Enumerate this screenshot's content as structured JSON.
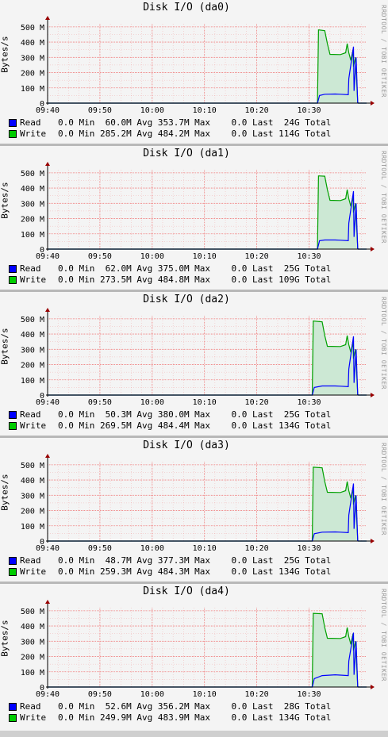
{
  "colors": {
    "read": "#0000ff",
    "write": "#00cc00",
    "write_fill": "#cce8d4",
    "write_line": "#00a000",
    "grid": "#f08080",
    "axis": "#000000",
    "arrow": "#990000"
  },
  "watermark": "RRDTOOL / TOBI OETIKER",
  "chart_data": [
    {
      "type": "area",
      "title": "Disk I/O (da0)",
      "ylabel": "Bytes/s",
      "x_ticks": [
        "09:40",
        "09:50",
        "10:00",
        "10:10",
        "10:20",
        "10:30"
      ],
      "y_ticks": [
        "0",
        "100 M",
        "200 M",
        "300 M",
        "400 M",
        "500 M"
      ],
      "ylim": [
        0,
        520
      ],
      "xlim_minutes": [
        0,
        61
      ],
      "grid": true,
      "series": [
        {
          "name": "Read",
          "color": "#0000ff",
          "x": [
            0,
            51.6,
            52.0,
            53.0,
            55.0,
            56.0,
            57.5,
            57.6,
            58.5,
            58.6,
            59.0,
            59.3,
            59.4,
            61.0
          ],
          "y": [
            0,
            0,
            50,
            58,
            60,
            58,
            55,
            160,
            370,
            80,
            300,
            5,
            0,
            0
          ],
          "stats": {
            "current": "0.0",
            "min": "60.0M",
            "avg": "353.7M",
            "max": "0.0",
            "last": "24G"
          }
        },
        {
          "name": "Write",
          "color": "#00cc00",
          "x": [
            0,
            51.6,
            51.8,
            53.0,
            53.5,
            54.0,
            56.0,
            57.0,
            57.3,
            57.6,
            58.0,
            58.4,
            58.5,
            58.9,
            59.3,
            59.4,
            61.0
          ],
          "y": [
            0,
            0,
            480,
            475,
            390,
            320,
            318,
            330,
            390,
            330,
            280,
            350,
            240,
            300,
            5,
            0,
            0
          ],
          "stats": {
            "current": "0.0",
            "min": "285.2M",
            "avg": "484.2M",
            "max": "0.0",
            "last": "114G"
          }
        }
      ]
    },
    {
      "type": "area",
      "title": "Disk I/O (da1)",
      "ylabel": "Bytes/s",
      "x_ticks": [
        "09:40",
        "09:50",
        "10:00",
        "10:10",
        "10:20",
        "10:30"
      ],
      "y_ticks": [
        "0",
        "100 M",
        "200 M",
        "300 M",
        "400 M",
        "500 M"
      ],
      "ylim": [
        0,
        520
      ],
      "xlim_minutes": [
        0,
        61
      ],
      "grid": true,
      "series": [
        {
          "name": "Read",
          "color": "#0000ff",
          "x": [
            0,
            51.6,
            52.0,
            53.0,
            55.0,
            56.0,
            57.5,
            57.6,
            58.5,
            58.6,
            59.0,
            59.3,
            59.4,
            61.0
          ],
          "y": [
            0,
            0,
            55,
            60,
            60,
            58,
            55,
            170,
            380,
            80,
            300,
            5,
            0,
            0
          ],
          "stats": {
            "current": "0.0",
            "min": "62.0M",
            "avg": "375.0M",
            "max": "0.0",
            "last": "25G"
          }
        },
        {
          "name": "Write",
          "color": "#00cc00",
          "x": [
            0,
            51.6,
            51.8,
            53.0,
            53.5,
            54.0,
            56.0,
            57.0,
            57.3,
            57.6,
            58.0,
            58.4,
            58.5,
            58.9,
            59.3,
            59.4,
            61.0
          ],
          "y": [
            0,
            0,
            480,
            478,
            390,
            320,
            318,
            330,
            390,
            330,
            280,
            350,
            240,
            300,
            5,
            0,
            0
          ],
          "stats": {
            "current": "0.0",
            "min": "273.5M",
            "avg": "484.8M",
            "max": "0.0",
            "last": "109G"
          }
        }
      ]
    },
    {
      "type": "area",
      "title": "Disk I/O (da2)",
      "ylabel": "Bytes/s",
      "x_ticks": [
        "09:40",
        "09:50",
        "10:00",
        "10:10",
        "10:20",
        "10:30"
      ],
      "y_ticks": [
        "0",
        "100 M",
        "200 M",
        "300 M",
        "400 M",
        "500 M"
      ],
      "ylim": [
        0,
        520
      ],
      "xlim_minutes": [
        0,
        61
      ],
      "grid": true,
      "series": [
        {
          "name": "Read",
          "color": "#0000ff",
          "x": [
            0,
            50.6,
            51.0,
            52.5,
            55.0,
            56.0,
            57.5,
            57.6,
            58.5,
            58.6,
            59.0,
            59.3,
            59.4,
            61.0
          ],
          "y": [
            0,
            0,
            50,
            60,
            60,
            58,
            55,
            170,
            385,
            80,
            300,
            5,
            0,
            0
          ],
          "stats": {
            "current": "0.0",
            "min": "50.3M",
            "avg": "380.0M",
            "max": "0.0",
            "last": "25G"
          }
        },
        {
          "name": "Write",
          "color": "#00cc00",
          "x": [
            0,
            50.6,
            50.8,
            52.5,
            53.0,
            53.5,
            56.0,
            57.0,
            57.3,
            57.6,
            58.0,
            58.4,
            58.5,
            58.9,
            59.3,
            59.4,
            61.0
          ],
          "y": [
            0,
            0,
            485,
            480,
            390,
            320,
            318,
            330,
            390,
            330,
            280,
            350,
            240,
            300,
            5,
            0,
            0
          ],
          "stats": {
            "current": "0.0",
            "min": "269.5M",
            "avg": "484.4M",
            "max": "0.0",
            "last": "134G"
          }
        }
      ]
    },
    {
      "type": "area",
      "title": "Disk I/O (da3)",
      "ylabel": "Bytes/s",
      "x_ticks": [
        "09:40",
        "09:50",
        "10:00",
        "10:10",
        "10:20",
        "10:30"
      ],
      "y_ticks": [
        "0",
        "100 M",
        "200 M",
        "300 M",
        "400 M",
        "500 M"
      ],
      "ylim": [
        0,
        520
      ],
      "xlim_minutes": [
        0,
        61
      ],
      "grid": true,
      "series": [
        {
          "name": "Read",
          "color": "#0000ff",
          "x": [
            0,
            50.6,
            51.0,
            52.5,
            55.0,
            56.0,
            57.5,
            57.6,
            58.5,
            58.6,
            59.0,
            59.3,
            59.4,
            61.0
          ],
          "y": [
            0,
            0,
            48,
            58,
            60,
            58,
            55,
            170,
            377,
            80,
            300,
            5,
            0,
            0
          ],
          "stats": {
            "current": "0.0",
            "min": "48.7M",
            "avg": "377.3M",
            "max": "0.0",
            "last": "25G"
          }
        },
        {
          "name": "Write",
          "color": "#00cc00",
          "x": [
            0,
            50.6,
            50.8,
            52.5,
            53.0,
            53.5,
            56.0,
            57.0,
            57.3,
            57.6,
            58.0,
            58.4,
            58.5,
            58.9,
            59.3,
            59.4,
            61.0
          ],
          "y": [
            0,
            0,
            484,
            480,
            390,
            320,
            318,
            330,
            390,
            330,
            280,
            350,
            240,
            300,
            5,
            0,
            0
          ],
          "stats": {
            "current": "0.0",
            "min": "259.3M",
            "avg": "484.3M",
            "max": "0.0",
            "last": "134G"
          }
        }
      ]
    },
    {
      "type": "area",
      "title": "Disk I/O (da4)",
      "ylabel": "Bytes/s",
      "x_ticks": [
        "09:40",
        "09:50",
        "10:00",
        "10:10",
        "10:20",
        "10:30"
      ],
      "y_ticks": [
        "0",
        "100 M",
        "200 M",
        "300 M",
        "400 M",
        "500 M"
      ],
      "ylim": [
        0,
        520
      ],
      "xlim_minutes": [
        0,
        61
      ],
      "grid": true,
      "series": [
        {
          "name": "Read",
          "color": "#0000ff",
          "x": [
            0,
            50.6,
            51.0,
            52.5,
            55.0,
            56.0,
            57.5,
            57.6,
            58.5,
            58.6,
            59.0,
            59.3,
            59.4,
            61.0
          ],
          "y": [
            0,
            0,
            55,
            75,
            80,
            78,
            75,
            170,
            356,
            80,
            300,
            5,
            0,
            0
          ],
          "stats": {
            "current": "0.0",
            "min": "52.6M",
            "avg": "356.2M",
            "max": "0.0",
            "last": "28G"
          }
        },
        {
          "name": "Write",
          "color": "#00cc00",
          "x": [
            0,
            50.6,
            50.8,
            52.5,
            53.0,
            53.5,
            56.0,
            57.0,
            57.3,
            57.6,
            58.0,
            58.4,
            58.5,
            58.9,
            59.3,
            59.4,
            61.0
          ],
          "y": [
            0,
            0,
            483,
            480,
            390,
            320,
            318,
            330,
            390,
            330,
            280,
            350,
            240,
            300,
            5,
            0,
            0
          ],
          "stats": {
            "current": "0.0",
            "min": "249.9M",
            "avg": "483.9M",
            "max": "0.0",
            "last": "134G"
          }
        }
      ]
    }
  ],
  "legend_words": {
    "min": "Min",
    "avg": "Avg",
    "max": "Max",
    "last": "Last",
    "total": "Total"
  }
}
